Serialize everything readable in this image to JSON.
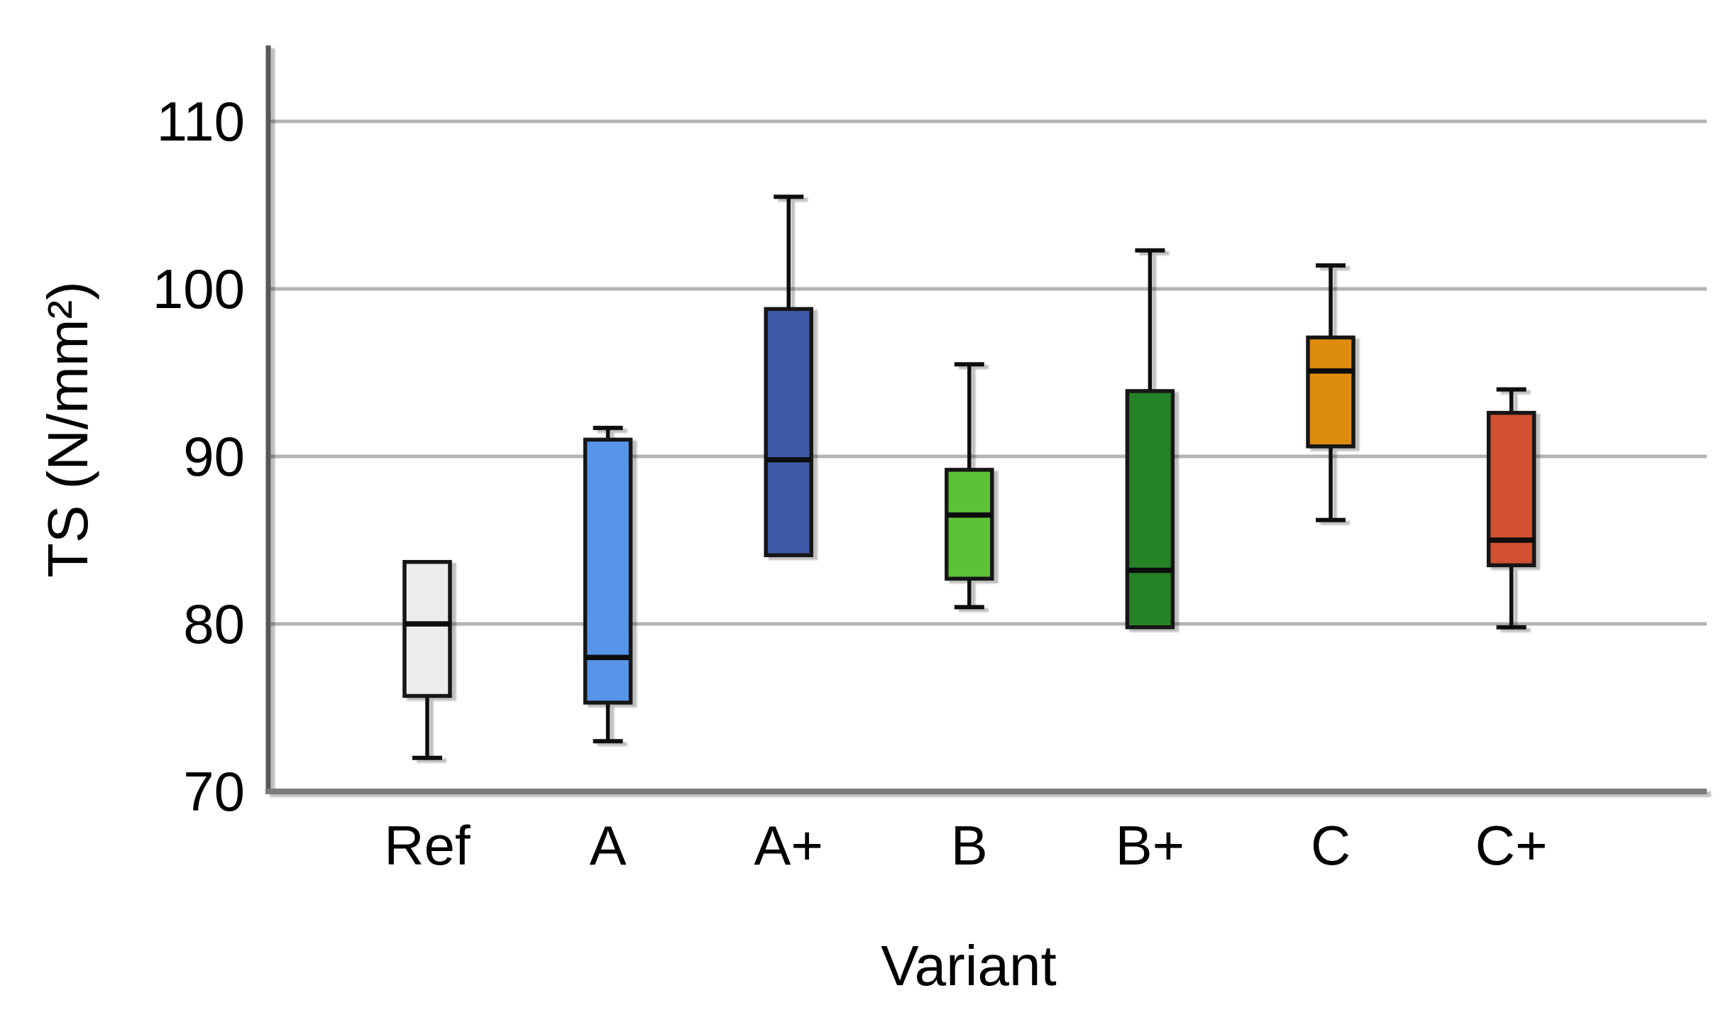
{
  "chart_data": {
    "type": "boxplot",
    "xlabel": "Variant",
    "ylabel": "TS (N/mm²)",
    "ylim": [
      70,
      114.5
    ],
    "yticks": [
      70,
      80,
      90,
      100,
      110
    ],
    "grid": "horizontal",
    "legend": "none",
    "categories": [
      "Ref",
      "A",
      "A+",
      "B",
      "B+",
      "C",
      "C+"
    ],
    "series": [
      {
        "name": "Ref",
        "min": 72.0,
        "q1": 75.7,
        "median": 80.0,
        "q3": 83.7,
        "max": 83.7,
        "color": "#ececec"
      },
      {
        "name": "A",
        "min": 73.0,
        "q1": 75.3,
        "median": 78.0,
        "q3": 91.0,
        "max": 91.7,
        "color": "#5794e7"
      },
      {
        "name": "A+",
        "min": 84.1,
        "q1": 84.1,
        "median": 89.8,
        "q3": 98.8,
        "max": 105.5,
        "color": "#3e5aa7"
      },
      {
        "name": "B",
        "min": 81.0,
        "q1": 82.7,
        "median": 86.5,
        "q3": 89.2,
        "max": 95.5,
        "color": "#5dc238"
      },
      {
        "name": "B+",
        "min": 79.8,
        "q1": 79.8,
        "median": 83.2,
        "q3": 93.9,
        "max": 102.3,
        "color": "#288226"
      },
      {
        "name": "C",
        "min": 86.2,
        "q1": 90.6,
        "median": 95.1,
        "q3": 97.1,
        "max": 101.4,
        "color": "#de8c10"
      },
      {
        "name": "C+",
        "min": 79.8,
        "q1": 83.5,
        "median": 85.0,
        "q3": 92.6,
        "max": 94.0,
        "color": "#d15133"
      }
    ],
    "style": {
      "background": "#ffffff",
      "gridline_color": "#b4b4b4",
      "y_axis_color": "#595959",
      "x_axis_color": "#7d7d7d",
      "box_border_color": "#161616",
      "median_color": "#111111",
      "whisker_color": "#111111",
      "text_color": "#000000"
    }
  }
}
